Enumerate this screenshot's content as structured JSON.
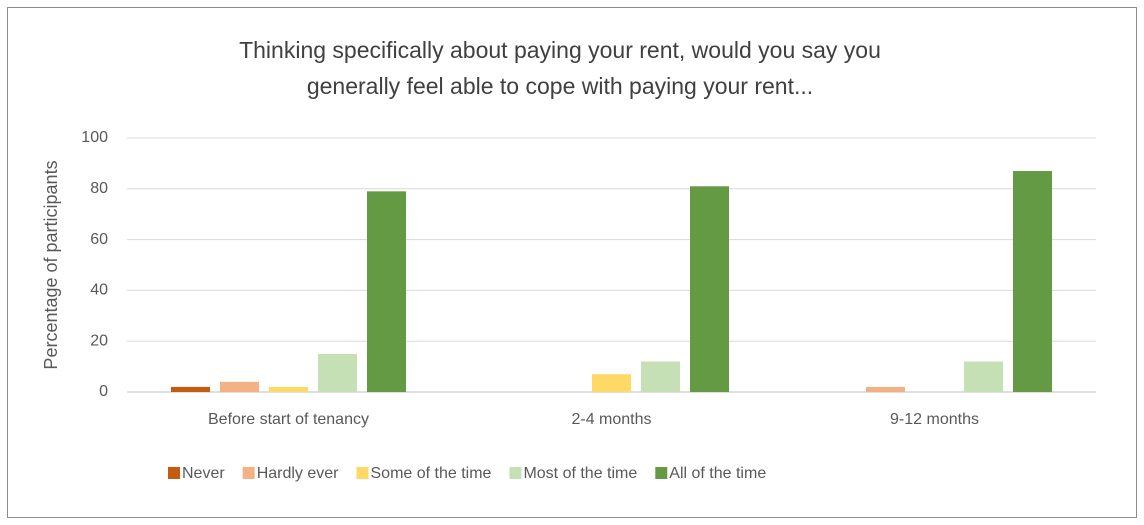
{
  "chart_data": {
    "type": "bar",
    "title": "Thinking specifically about paying your rent, would you say you generally feel able to cope with paying your rent...",
    "y_label": "Percentage of participants",
    "categories": [
      "Before start of tenancy",
      "2-4 months",
      "9-12 months"
    ],
    "series": [
      {
        "name": "Never",
        "color": "#c55a11",
        "values": [
          2,
          0,
          0
        ]
      },
      {
        "name": "Hardly ever",
        "color": "#f4b183",
        "values": [
          4,
          0,
          2
        ]
      },
      {
        "name": "Some of the time",
        "color": "#ffd966",
        "values": [
          2,
          7,
          0
        ]
      },
      {
        "name": "Most of the time",
        "color": "#c5e0b4",
        "values": [
          15,
          12,
          12
        ]
      },
      {
        "name": "All of the time",
        "color": "#659a45",
        "values": [
          79,
          81,
          87
        ]
      }
    ],
    "ylim": [
      0,
      100
    ],
    "yticks": [
      0,
      20,
      40,
      60,
      80,
      100
    ],
    "grid": true,
    "legend": "bottom"
  }
}
